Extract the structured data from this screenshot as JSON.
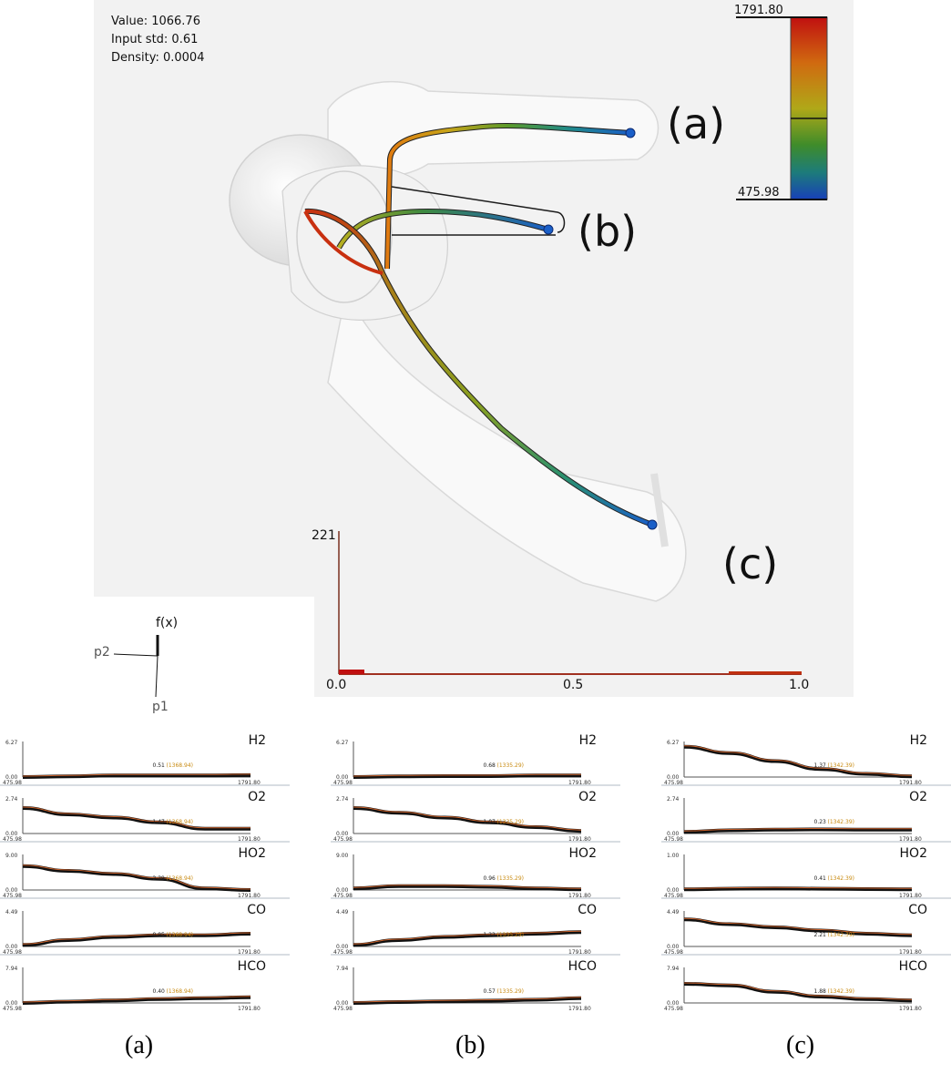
{
  "info": {
    "value": "Value: 1066.76",
    "input_std": "Input std: 0.61",
    "density": "Density: 0.0004"
  },
  "colorbar": {
    "max": "1791.80",
    "min": "475.98"
  },
  "labels": {
    "a": "(a)",
    "b": "(b)",
    "c": "(c)"
  },
  "axes_widget": {
    "fx": "f(x)",
    "p1": "p1",
    "p2": "p2"
  },
  "histogram": {
    "count": "221",
    "ticks": [
      "0.0",
      "0.5",
      "1.0"
    ]
  },
  "panels": [
    {
      "id": "a",
      "rows": [
        {
          "name": "H2",
          "ymax": "6.27",
          "ymin": "0.00",
          "xmin": "475.98",
          "xmax": "1791.80",
          "val": "0.51",
          "sel": "(1368.94)"
        },
        {
          "name": "O2",
          "ymax": "2.74",
          "ymin": "0.00",
          "xmin": "475.98",
          "xmax": "1791.80",
          "val": "1.47",
          "sel": "(1368.94)"
        },
        {
          "name": "HO2",
          "ymax": "9.00",
          "ymin": "0.00",
          "xmin": "475.98",
          "xmax": "1791.80",
          "val": "2.39",
          "sel": "(1368.94)"
        },
        {
          "name": "CO",
          "ymax": "4.49",
          "ymin": "0.00",
          "xmin": "475.98",
          "xmax": "1791.80",
          "val": "0.95",
          "sel": "(1368.94)"
        },
        {
          "name": "HCO",
          "ymax": "7.94",
          "ymin": "0.00",
          "xmin": "475.98",
          "xmax": "1791.80",
          "val": "0.40",
          "sel": "(1368.94)"
        }
      ]
    },
    {
      "id": "b",
      "rows": [
        {
          "name": "H2",
          "ymax": "6.27",
          "ymin": "0.00",
          "xmin": "475.98",
          "xmax": "1791.80",
          "val": "0.68",
          "sel": "(1335.29)"
        },
        {
          "name": "O2",
          "ymax": "2.74",
          "ymin": "0.00",
          "xmin": "475.98",
          "xmax": "1791.80",
          "val": "1.07",
          "sel": "(1335.29)"
        },
        {
          "name": "HO2",
          "ymax": "9.00",
          "ymin": "0.00",
          "xmin": "475.98",
          "xmax": "1791.80",
          "val": "0.96",
          "sel": "(1335.29)"
        },
        {
          "name": "CO",
          "ymax": "4.49",
          "ymin": "0.00",
          "xmin": "475.98",
          "xmax": "1791.80",
          "val": "1.22",
          "sel": "(1335.29)"
        },
        {
          "name": "HCO",
          "ymax": "7.94",
          "ymin": "0.00",
          "xmin": "475.98",
          "xmax": "1791.80",
          "val": "0.57",
          "sel": "(1335.29)"
        }
      ]
    },
    {
      "id": "c",
      "rows": [
        {
          "name": "H2",
          "ymax": "6.27",
          "ymin": "0.00",
          "xmin": "475.98",
          "xmax": "1791.80",
          "val": "1.37",
          "sel": "(1342.39)"
        },
        {
          "name": "O2",
          "ymax": "2.74",
          "ymin": "0.00",
          "xmin": "475.98",
          "xmax": "1791.80",
          "val": "0.23",
          "sel": "(1342.39)"
        },
        {
          "name": "HO2",
          "ymax": "1.00",
          "ymin": "0.00",
          "xmin": "475.98",
          "xmax": "1791.80",
          "val": "0.41",
          "sel": "(1342.39)"
        },
        {
          "name": "CO",
          "ymax": "4.49",
          "ymin": "0.00",
          "xmin": "475.98",
          "xmax": "1791.80",
          "val": "2.21",
          "sel": "(1342.39)"
        },
        {
          "name": "HCO",
          "ymax": "7.94",
          "ymin": "0.00",
          "xmin": "475.98",
          "xmax": "1791.80",
          "val": "1.88",
          "sel": "(1342.39)"
        }
      ]
    }
  ],
  "captions": [
    "(a)",
    "(b)",
    "(c)"
  ]
}
